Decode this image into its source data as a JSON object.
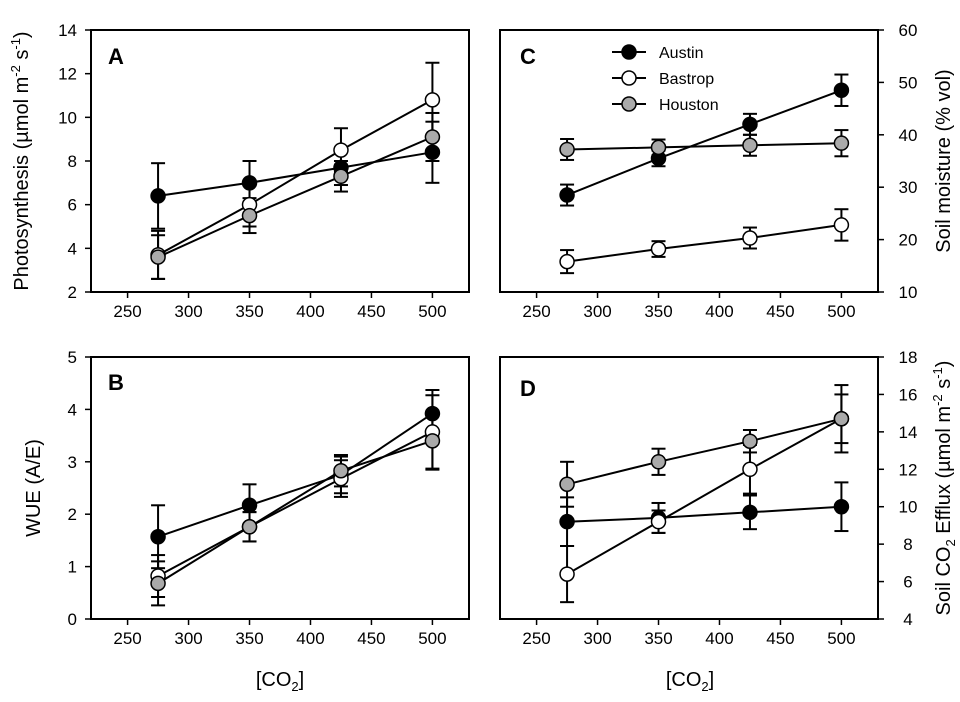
{
  "chart_data": [
    {
      "panel": "A",
      "type": "line",
      "x_axis_side": "bottom",
      "y_axis_side": "left",
      "ylabel": "Photosynthesis (µmol m-2 s-1)",
      "xlim": [
        220,
        530
      ],
      "ylim": [
        2,
        14
      ],
      "xticks": [
        250,
        300,
        350,
        400,
        450,
        500
      ],
      "yticks": [
        2,
        4,
        6,
        8,
        10,
        12,
        14
      ],
      "series": [
        {
          "name": "Austin",
          "marker": "#000000",
          "x": [
            275,
            350,
            425,
            500
          ],
          "y": [
            6.4,
            7.0,
            7.7,
            8.4
          ],
          "err": [
            1.5,
            1.0,
            0.8,
            1.4
          ]
        },
        {
          "name": "Bastrop",
          "marker": "#ffffff",
          "x": [
            275,
            350,
            425,
            500
          ],
          "y": [
            3.7,
            6.0,
            8.5,
            10.8
          ],
          "err": [
            1.1,
            1.0,
            1.0,
            1.7
          ]
        },
        {
          "name": "Houston",
          "marker": "#aaaaaa",
          "x": [
            275,
            350,
            425,
            500
          ],
          "y": [
            3.6,
            5.5,
            7.3,
            9.1
          ],
          "err": [
            1.0,
            0.8,
            0.7,
            1.1
          ]
        }
      ]
    },
    {
      "panel": "C",
      "type": "line",
      "x_axis_side": "bottom",
      "y_axis_side": "right",
      "ylabel": "Soil moisture (% vol)",
      "xlim": [
        220,
        530
      ],
      "ylim": [
        10,
        60
      ],
      "xticks": [
        250,
        300,
        350,
        400,
        450,
        500
      ],
      "yticks": [
        10,
        20,
        30,
        40,
        50,
        60
      ],
      "legend": {
        "placement": "top-left",
        "entries": [
          "Austin",
          "Bastrop",
          "Houston"
        ]
      },
      "series": [
        {
          "name": "Austin",
          "marker": "#000000",
          "x": [
            275,
            350,
            425,
            500
          ],
          "y": [
            28.5,
            35.5,
            42.0,
            48.5
          ],
          "err": [
            2.0,
            1.5,
            2.0,
            3.0
          ]
        },
        {
          "name": "Bastrop",
          "marker": "#ffffff",
          "x": [
            275,
            350,
            425,
            500
          ],
          "y": [
            15.8,
            18.2,
            20.3,
            22.8
          ],
          "err": [
            2.2,
            1.5,
            2.0,
            3.0
          ]
        },
        {
          "name": "Houston",
          "marker": "#aaaaaa",
          "x": [
            275,
            350,
            425,
            500
          ],
          "y": [
            37.2,
            37.6,
            38.0,
            38.4
          ],
          "err": [
            2.0,
            1.5,
            2.0,
            2.5
          ]
        }
      ]
    },
    {
      "panel": "B",
      "type": "line",
      "x_axis_side": "bottom",
      "y_axis_side": "left",
      "xlabel": "[CO2]",
      "ylabel": "WUE (A/E)",
      "xlim": [
        220,
        530
      ],
      "ylim": [
        0,
        5
      ],
      "xticks": [
        250,
        300,
        350,
        400,
        450,
        500
      ],
      "yticks": [
        0,
        1,
        2,
        3,
        4,
        5
      ],
      "series": [
        {
          "name": "Austin",
          "marker": "#000000",
          "x": [
            275,
            350,
            425,
            500
          ],
          "y": [
            1.57,
            2.17,
            2.75,
            3.92
          ],
          "err": [
            0.6,
            0.4,
            0.35,
            0.45
          ]
        },
        {
          "name": "Bastrop",
          "marker": "#ffffff",
          "x": [
            275,
            350,
            425,
            500
          ],
          "y": [
            0.82,
            1.76,
            2.68,
            3.57
          ],
          "err": [
            0.4,
            0.28,
            0.35,
            0.7
          ]
        },
        {
          "name": "Houston",
          "marker": "#aaaaaa",
          "x": [
            275,
            350,
            425,
            500
          ],
          "y": [
            0.68,
            1.76,
            2.83,
            3.4
          ],
          "err": [
            0.42,
            0.28,
            0.3,
            0.55
          ]
        }
      ]
    },
    {
      "panel": "D",
      "type": "line",
      "x_axis_side": "bottom",
      "y_axis_side": "right",
      "xlabel": "[CO2]",
      "ylabel": "Soil CO2 Efflux (µmol m-2 s-1)",
      "xlim": [
        220,
        530
      ],
      "ylim": [
        4,
        18
      ],
      "xticks": [
        250,
        300,
        350,
        400,
        450,
        500
      ],
      "yticks": [
        4,
        6,
        8,
        10,
        12,
        14,
        16,
        18
      ],
      "series": [
        {
          "name": "Austin",
          "marker": "#000000",
          "x": [
            275,
            350,
            425,
            500
          ],
          "y": [
            9.2,
            9.4,
            9.7,
            10.0
          ],
          "err": [
            1.3,
            0.8,
            0.9,
            1.3
          ]
        },
        {
          "name": "Bastrop",
          "marker": "#ffffff",
          "x": [
            275,
            350,
            425,
            500
          ],
          "y": [
            6.4,
            9.2,
            12.0,
            14.7
          ],
          "err": [
            1.5,
            0.6,
            1.3,
            1.8
          ]
        },
        {
          "name": "Houston",
          "marker": "#aaaaaa",
          "x": [
            275,
            350,
            425,
            500
          ],
          "y": [
            11.2,
            12.4,
            13.5,
            14.7
          ],
          "err": [
            1.2,
            0.7,
            0.6,
            1.3
          ]
        }
      ]
    }
  ],
  "panels_text": {
    "A": {
      "letter": "A",
      "ylabel_main": "Photosynthesis (",
      "ylabel_mu": "µ",
      "ylabel_unit": "mol m",
      "ylabel_sup1": "-2",
      "ylabel_s": " s",
      "ylabel_sup2": "-1",
      "ylabel_close": ")"
    },
    "B": {
      "letter": "B",
      "ylabel": "WUE (A/E)"
    },
    "C": {
      "letter": "C",
      "ylabel": "Soil moisture (% vol)"
    },
    "D": {
      "letter": "D",
      "ylabel_main": "Soil CO",
      "ylabel_sub": "2",
      "ylabel_mid": " Efflux (",
      "ylabel_mu": "µ",
      "ylabel_unit": "mol m",
      "ylabel_sup1": "-2",
      "ylabel_s": " s",
      "ylabel_sup2": "-1",
      "ylabel_close": ")"
    }
  },
  "xlabel_text": {
    "main": "[CO",
    "sub": "2",
    "close": "]"
  },
  "legend": [
    {
      "label": "Austin",
      "fill": "#000000"
    },
    {
      "label": "Bastrop",
      "fill": "#ffffff"
    },
    {
      "label": "Houston",
      "fill": "#aaaaaa"
    }
  ],
  "colors": {
    "austin": "#000000",
    "bastrop": "#ffffff",
    "houston": "#aaaaaa",
    "line": "#000000"
  }
}
